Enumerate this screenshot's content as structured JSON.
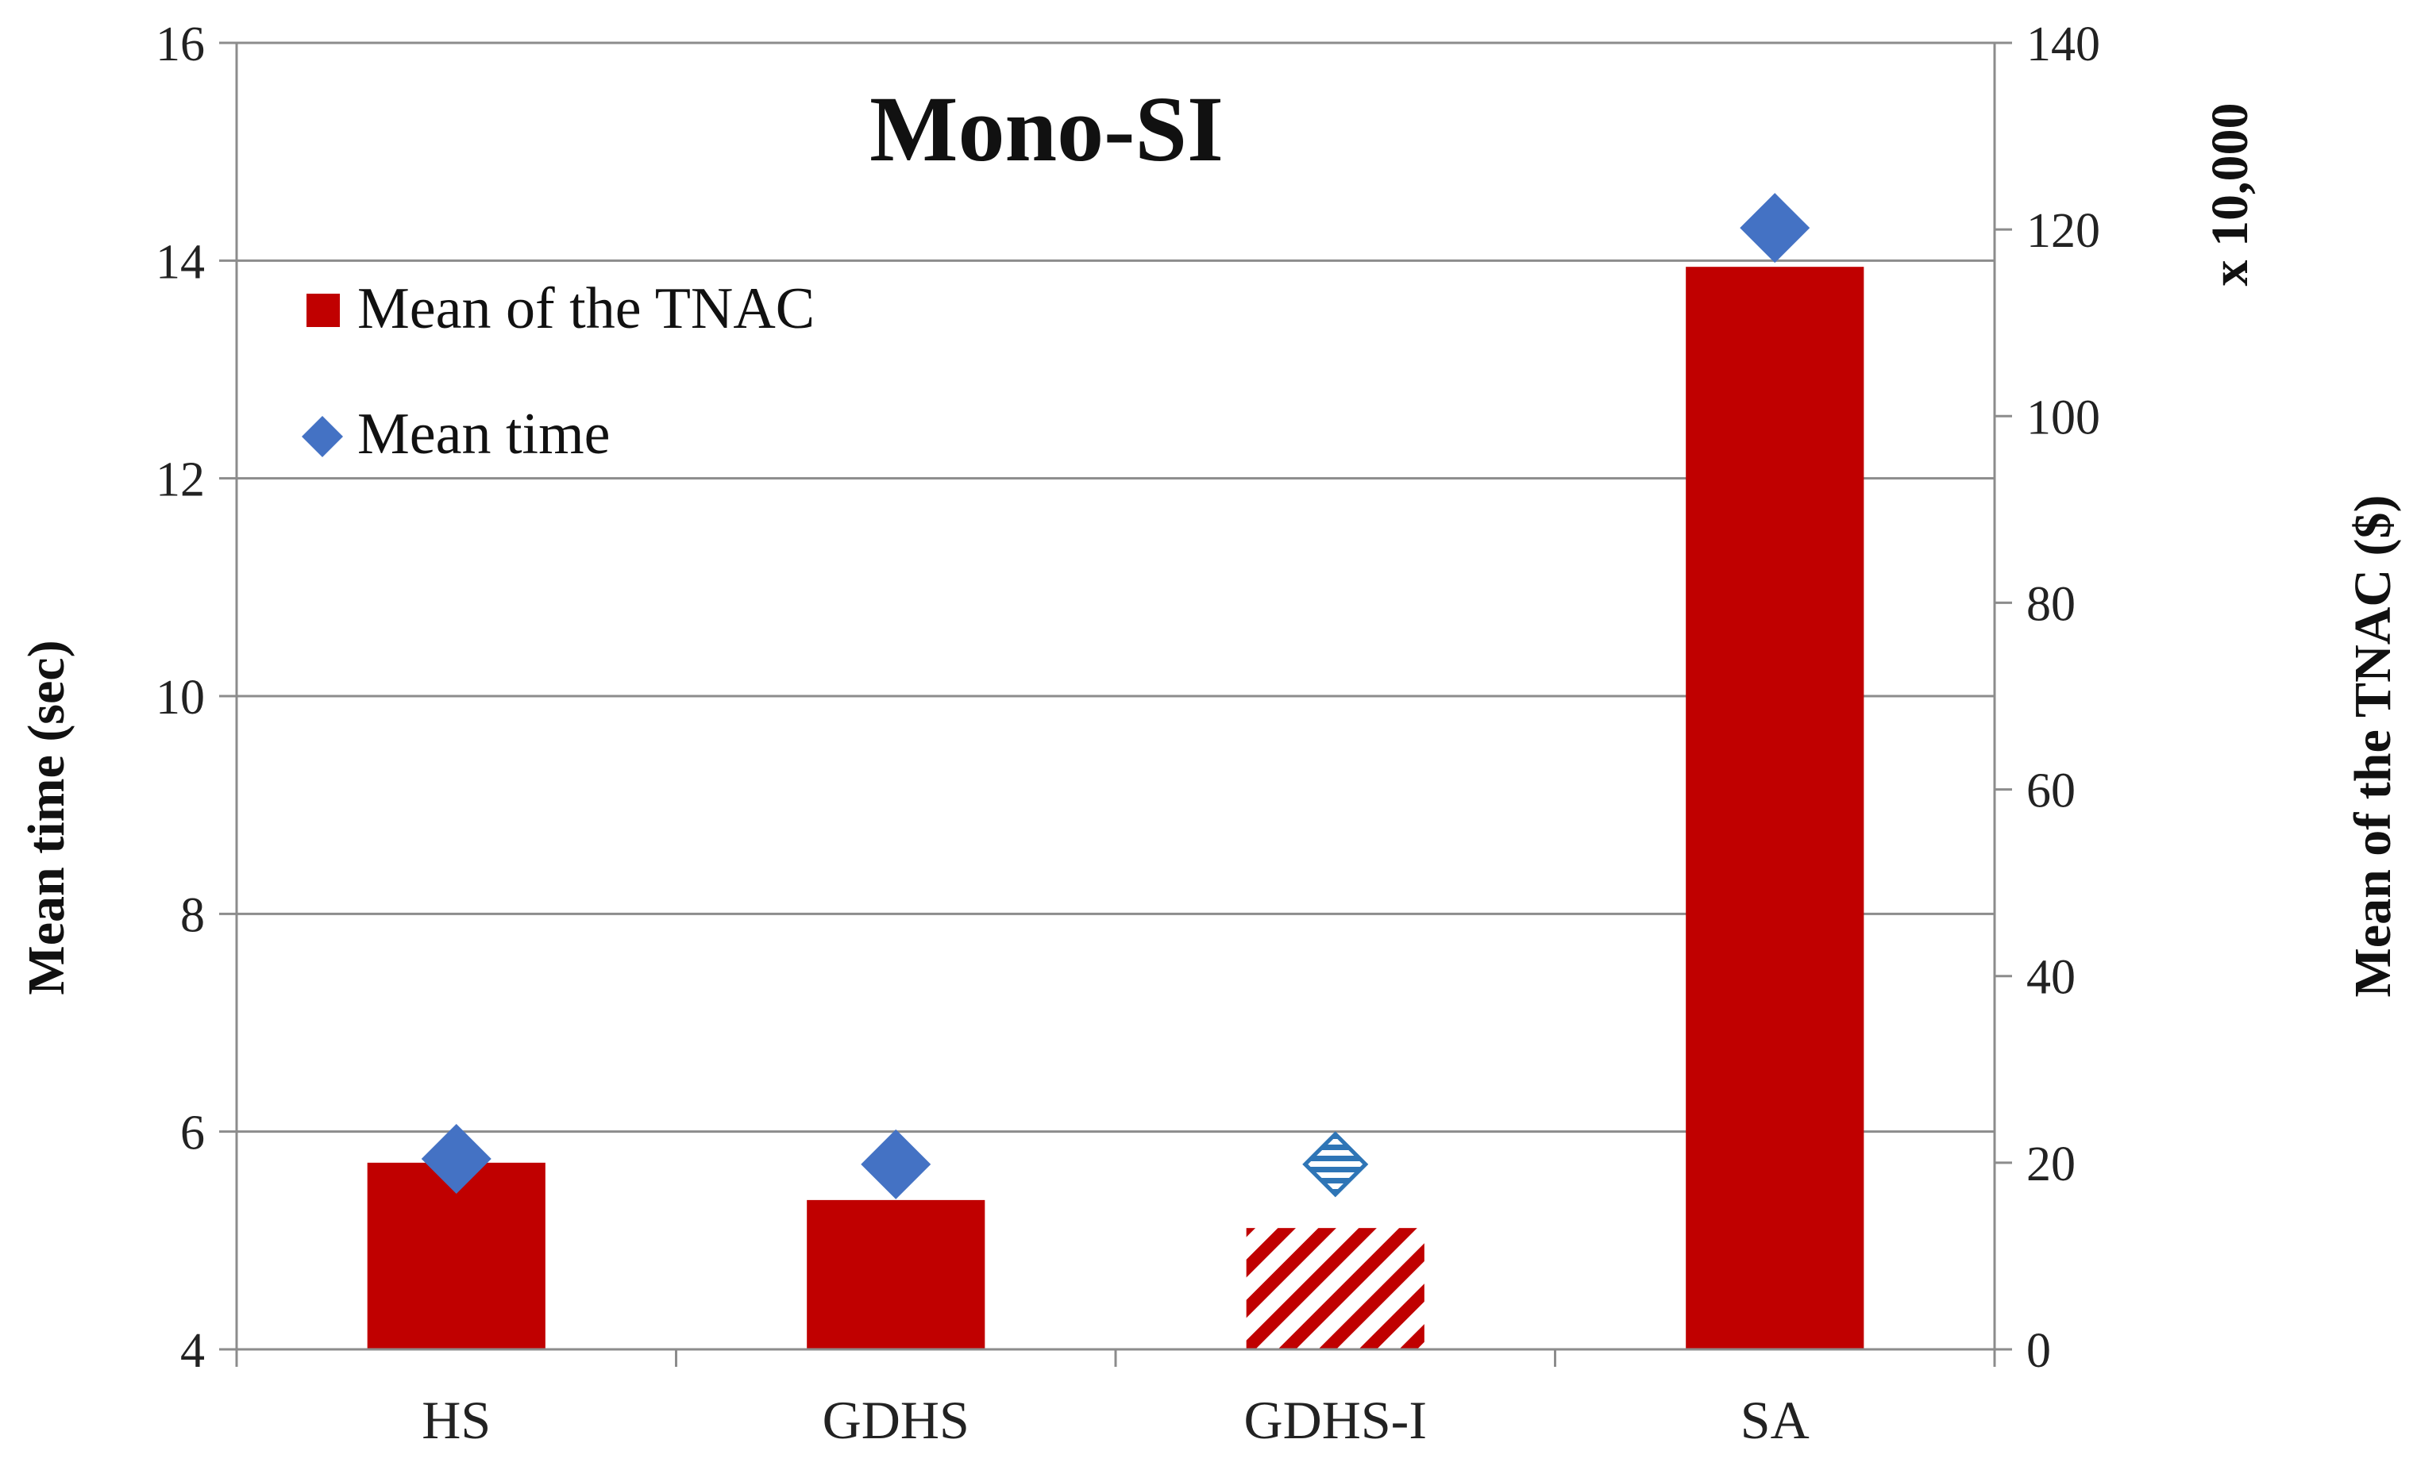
{
  "chart_data": {
    "type": "bar",
    "title": "Mono-SI",
    "categories": [
      "HS",
      "GDHS",
      "GDHS-I",
      "SA"
    ],
    "series": [
      {
        "name": "Mean of the TNAC",
        "kind": "bar",
        "axis": "right",
        "values": [
          20,
          16,
          13,
          116
        ],
        "color": "#c00000",
        "hatched_categories": [
          "GDHS-I"
        ]
      },
      {
        "name": "Mean time",
        "kind": "marker",
        "marker": "diamond",
        "axis": "left",
        "values": [
          5.75,
          5.7,
          5.7,
          14.3
        ],
        "color": "#4472c4",
        "hatched_categories": [
          "GDHS-I"
        ]
      }
    ],
    "y_left": {
      "label": "Mean time (sec)",
      "range": [
        4,
        16
      ],
      "ticks": [
        "4",
        "6",
        "8",
        "10",
        "12",
        "14",
        "16"
      ]
    },
    "y_right": {
      "label": "Mean of the TNAC ($)",
      "multiplier_label": "x 10,000",
      "range": [
        0,
        140
      ],
      "ticks": [
        "0",
        "20",
        "40",
        "60",
        "80",
        "100",
        "120",
        "140"
      ]
    },
    "legend_position": "top-left",
    "grid": true
  }
}
